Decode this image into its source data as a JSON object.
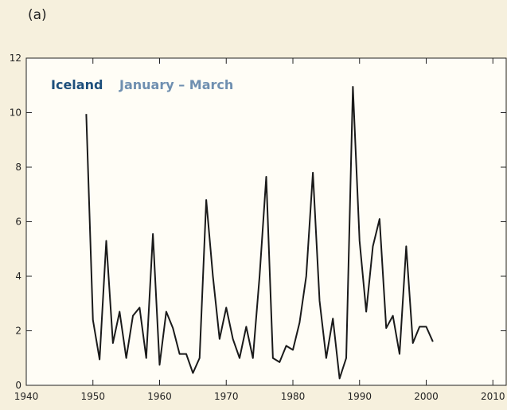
{
  "panel_label": "(a)",
  "chart_data": {
    "type": "line",
    "title": "Iceland",
    "subtitle": "January – March",
    "x": [
      1949,
      1950,
      1951,
      1952,
      1953,
      1954,
      1955,
      1956,
      1957,
      1958,
      1959,
      1960,
      1961,
      1962,
      1963,
      1964,
      1965,
      1966,
      1967,
      1968,
      1969,
      1970,
      1971,
      1972,
      1973,
      1974,
      1975,
      1976,
      1977,
      1978,
      1979,
      1980,
      1981,
      1982,
      1983,
      1984,
      1985,
      1986,
      1987,
      1988,
      1989,
      1990,
      1991,
      1992,
      1993,
      1994,
      1995,
      1996,
      1997,
      1998,
      1999,
      2000,
      2001
    ],
    "series": [
      {
        "name": "Iceland",
        "color": "#1a1a1a",
        "values": [
          9.95,
          2.4,
          0.95,
          5.3,
          1.55,
          2.7,
          1.0,
          2.55,
          2.85,
          1.0,
          5.55,
          0.75,
          2.7,
          2.1,
          1.15,
          1.15,
          0.45,
          1.0,
          6.8,
          4.0,
          1.7,
          2.85,
          1.7,
          1.0,
          2.15,
          1.0,
          4.0,
          7.65,
          1.0,
          0.85,
          1.45,
          1.3,
          2.3,
          4.0,
          7.8,
          3.1,
          1.0,
          2.45,
          0.25,
          1.0,
          10.95,
          5.3,
          2.7,
          5.1,
          6.1,
          2.1,
          2.55,
          1.15,
          5.1,
          1.55,
          2.15,
          2.15,
          1.6
        ]
      }
    ],
    "xlim": [
      1940,
      2012
    ],
    "xticks": [
      1940,
      1950,
      1960,
      1970,
      1980,
      1990,
      2000,
      2010
    ],
    "ylim": [
      0,
      12
    ],
    "yticks": [
      0,
      2,
      4,
      6,
      8,
      10,
      12
    ]
  }
}
